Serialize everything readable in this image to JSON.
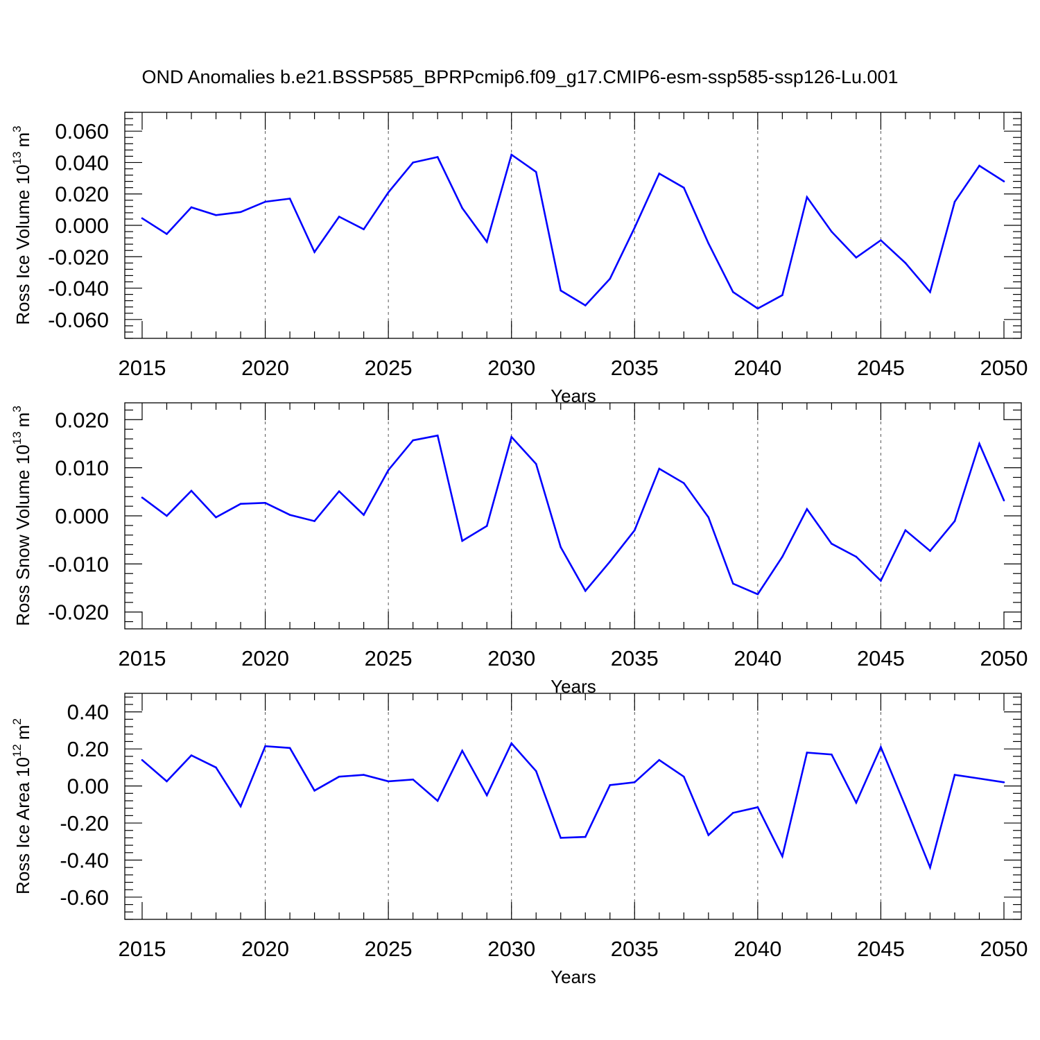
{
  "title": "OND Anomalies b.e21.BSSP585_BPRPcmip6.f09_g17.CMIP6-esm-ssp585-ssp126-Lu.001",
  "line_color": "#0000ff",
  "chart_data": [
    {
      "type": "line",
      "xlabel": "Years",
      "ylabel_text": "Ross Ice Volume 10",
      "ylabel_exp": "13",
      "ylabel_unit": "m",
      "ylabel_unit_exp": "3",
      "xlim": [
        2015,
        2050
      ],
      "ylim": [
        -0.072,
        0.072
      ],
      "xticks": [
        2015,
        2020,
        2025,
        2030,
        2035,
        2040,
        2045,
        2050
      ],
      "xtick_labels": [
        "2015",
        "2020",
        "2025",
        "2030",
        "2035",
        "2040",
        "2045",
        "2050"
      ],
      "yticks": [
        -0.06,
        -0.04,
        -0.02,
        0.0,
        0.02,
        0.04,
        0.06
      ],
      "ytick_labels": [
        "-0.060",
        "-0.040",
        "-0.020",
        "0.000",
        "0.020",
        "0.040",
        "0.060"
      ],
      "ytick_step": 0.02,
      "yminor_per_major": 5,
      "grid_x": "dashed",
      "x": [
        2015,
        2016,
        2017,
        2018,
        2019,
        2020,
        2021,
        2022,
        2023,
        2024,
        2025,
        2026,
        2027,
        2028,
        2029,
        2030,
        2031,
        2032,
        2033,
        2034,
        2035,
        2036,
        2037,
        2038,
        2039,
        2040,
        2041,
        2042,
        2043,
        2044,
        2045,
        2046,
        2047,
        2048,
        2049,
        2050
      ],
      "y": [
        0.0045,
        -0.0055,
        0.0115,
        0.0065,
        0.0085,
        0.015,
        0.017,
        -0.017,
        0.0055,
        -0.0025,
        0.021,
        0.04,
        0.0435,
        0.011,
        -0.0105,
        0.045,
        0.034,
        -0.0415,
        -0.051,
        -0.034,
        -0.0015,
        0.033,
        0.024,
        -0.0115,
        -0.0425,
        -0.053,
        -0.0445,
        0.018,
        -0.004,
        -0.0205,
        -0.0095,
        -0.024,
        -0.0425,
        0.015,
        0.038,
        0.028
      ]
    },
    {
      "type": "line",
      "xlabel": "Years",
      "ylabel_text": "Ross Snow Volume 10",
      "ylabel_exp": "13",
      "ylabel_unit": "m",
      "ylabel_unit_exp": "3",
      "xlim": [
        2015,
        2050
      ],
      "ylim": [
        -0.0235,
        0.0235
      ],
      "xticks": [
        2015,
        2020,
        2025,
        2030,
        2035,
        2040,
        2045,
        2050
      ],
      "xtick_labels": [
        "2015",
        "2020",
        "2025",
        "2030",
        "2035",
        "2040",
        "2045",
        "2050"
      ],
      "yticks": [
        -0.02,
        -0.01,
        0.0,
        0.01,
        0.02
      ],
      "ytick_labels": [
        "-0.020",
        "-0.010",
        "0.000",
        "0.010",
        "0.020"
      ],
      "ytick_step": 0.01,
      "yminor_per_major": 5,
      "grid_x": "dashed",
      "x": [
        2015,
        2016,
        2017,
        2018,
        2019,
        2020,
        2021,
        2022,
        2023,
        2024,
        2025,
        2026,
        2027,
        2028,
        2029,
        2030,
        2031,
        2032,
        2033,
        2034,
        2035,
        2036,
        2037,
        2038,
        2039,
        2040,
        2041,
        2042,
        2043,
        2044,
        2045,
        2046,
        2047,
        2048,
        2049,
        2050
      ],
      "y": [
        0.0038,
        0.0,
        0.0052,
        -0.0003,
        0.0025,
        0.0027,
        0.0002,
        -0.0011,
        0.0051,
        0.0002,
        0.0095,
        0.0157,
        0.0167,
        -0.0052,
        -0.0021,
        0.0164,
        0.0108,
        -0.0065,
        -0.0156,
        -0.0095,
        -0.003,
        0.0098,
        0.0068,
        -0.0003,
        -0.0141,
        -0.0163,
        -0.0085,
        0.0014,
        -0.0058,
        -0.0085,
        -0.0135,
        -0.003,
        -0.0073,
        -0.0011,
        0.015,
        0.0032
      ]
    },
    {
      "type": "line",
      "xlabel": "Years",
      "ylabel_text": "Ross Ice Area 10",
      "ylabel_exp": "12",
      "ylabel_unit": "m",
      "ylabel_unit_exp": "2",
      "xlim": [
        2015,
        2050
      ],
      "ylim": [
        -0.72,
        0.5
      ],
      "xticks": [
        2015,
        2020,
        2025,
        2030,
        2035,
        2040,
        2045,
        2050
      ],
      "xtick_labels": [
        "2015",
        "2020",
        "2025",
        "2030",
        "2035",
        "2040",
        "2045",
        "2050"
      ],
      "yticks": [
        -0.6,
        -0.4,
        -0.2,
        0.0,
        0.2,
        0.4
      ],
      "ytick_labels": [
        "-0.60",
        "-0.40",
        "-0.20",
        "0.00",
        "0.20",
        "0.40"
      ],
      "ytick_step": 0.2,
      "yminor_per_major": 5,
      "grid_x": "dashed",
      "x": [
        2015,
        2016,
        2017,
        2018,
        2019,
        2020,
        2021,
        2022,
        2023,
        2024,
        2025,
        2026,
        2027,
        2028,
        2029,
        2030,
        2031,
        2032,
        2033,
        2034,
        2035,
        2036,
        2037,
        2038,
        2039,
        2040,
        2041,
        2042,
        2043,
        2044,
        2045,
        2046,
        2047,
        2048,
        2049,
        2050
      ],
      "y": [
        0.14,
        0.025,
        0.165,
        0.1,
        -0.11,
        0.215,
        0.205,
        -0.025,
        0.05,
        0.06,
        0.025,
        0.035,
        -0.08,
        0.19,
        -0.05,
        0.23,
        0.08,
        -0.28,
        -0.275,
        0.005,
        0.02,
        0.14,
        0.05,
        -0.265,
        -0.145,
        -0.115,
        -0.38,
        0.18,
        0.17,
        -0.09,
        0.21,
        -0.11,
        -0.44,
        0.06,
        0.04,
        0.02
      ]
    }
  ]
}
